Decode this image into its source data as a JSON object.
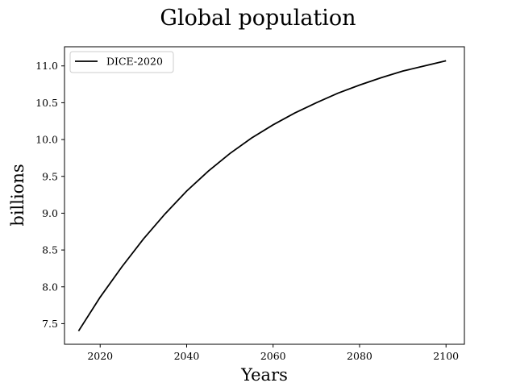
{
  "chart_data": {
    "type": "line",
    "title": "Global population",
    "xlabel": "Years",
    "ylabel": "billions",
    "xlim": [
      2011.75,
      2104.25
    ],
    "ylim": [
      7.22,
      11.26
    ],
    "xticks": [
      2020,
      2040,
      2060,
      2080,
      2100
    ],
    "yticks": [
      7.5,
      8.0,
      8.5,
      9.0,
      9.5,
      10.0,
      10.5,
      11.0
    ],
    "ytick_labels": [
      "7.5",
      "8.0",
      "8.5",
      "9.0",
      "9.5",
      "10.0",
      "10.5",
      "11.0"
    ],
    "legend_position": "top-left",
    "grid": false,
    "series": [
      {
        "name": "DICE-2020",
        "color": "#000000",
        "x": [
          2015,
          2020,
          2025,
          2030,
          2035,
          2040,
          2045,
          2050,
          2055,
          2060,
          2065,
          2070,
          2075,
          2080,
          2085,
          2090,
          2095,
          2100
        ],
        "y": [
          7.4,
          7.86,
          8.27,
          8.65,
          8.99,
          9.3,
          9.57,
          9.81,
          10.02,
          10.2,
          10.36,
          10.5,
          10.63,
          10.74,
          10.84,
          10.93,
          11.0,
          11.07
        ]
      }
    ]
  }
}
